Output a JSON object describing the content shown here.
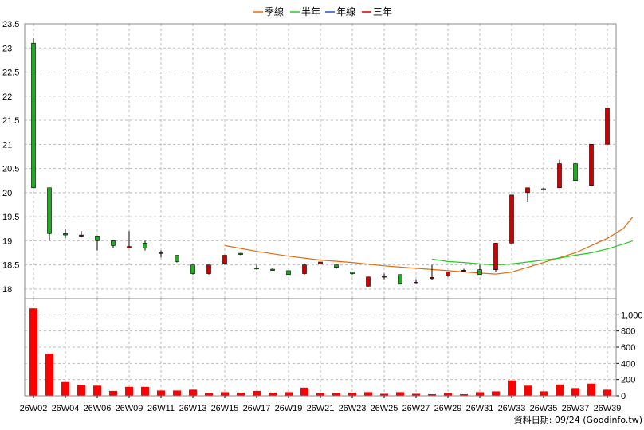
{
  "chart_data": {
    "type": "candlestick",
    "legend": [
      {
        "name": "季線",
        "color": "#e46c0a"
      },
      {
        "name": "半年",
        "color": "#22cc22"
      },
      {
        "name": "年線",
        "color": "#1f4fd8"
      },
      {
        "name": "三年",
        "color": "#cc0000"
      }
    ],
    "source_label": "資料日期: 09/24  (Goodinfo.tw)",
    "price_axis": {
      "min": 17.8,
      "max": 23.5,
      "ticks": [
        18,
        18.5,
        19,
        19.5,
        20,
        20.5,
        21,
        21.5,
        22,
        22.5,
        23,
        23.5
      ]
    },
    "volume_axis": {
      "min": 0,
      "max": 1200,
      "ticks": [
        0,
        200,
        400,
        600,
        800,
        1000
      ],
      "tick_labels": [
        "0",
        "200",
        "400",
        "600",
        "800",
        "1,000"
      ]
    },
    "x_labels": [
      "26W02",
      "26W04",
      "26W06",
      "26W09",
      "26W11",
      "26W13",
      "26W15",
      "26W17",
      "26W19",
      "26W21",
      "26W23",
      "26W25",
      "26W27",
      "26W29",
      "26W31",
      "26W33",
      "26W35",
      "26W37",
      "26W39"
    ],
    "up_color": "#cc0000",
    "down_color": "#22aa22",
    "weeks": [
      {
        "o": 23.1,
        "h": 23.2,
        "l": 20.1,
        "c": 20.1,
        "v": 1080
      },
      {
        "o": 20.1,
        "h": 20.1,
        "l": 19.0,
        "c": 19.15,
        "v": 520
      },
      {
        "o": 19.15,
        "h": 19.25,
        "l": 19.05,
        "c": 19.12,
        "v": 170
      },
      {
        "o": 19.12,
        "h": 19.2,
        "l": 19.08,
        "c": 19.12,
        "v": 135
      },
      {
        "o": 19.1,
        "h": 19.1,
        "l": 18.8,
        "c": 19.0,
        "v": 125
      },
      {
        "o": 19.0,
        "h": 19.0,
        "l": 18.85,
        "c": 18.9,
        "v": 60
      },
      {
        "o": 18.88,
        "h": 19.2,
        "l": 18.85,
        "c": 18.88,
        "v": 110
      },
      {
        "o": 18.95,
        "h": 19.0,
        "l": 18.8,
        "c": 18.85,
        "v": 110
      },
      {
        "o": 18.76,
        "h": 18.8,
        "l": 18.65,
        "c": 18.76,
        "v": 65
      },
      {
        "o": 18.7,
        "h": 18.7,
        "l": 18.55,
        "c": 18.57,
        "v": 65
      },
      {
        "o": 18.5,
        "h": 18.5,
        "l": 18.3,
        "c": 18.32,
        "v": 75
      },
      {
        "o": 18.32,
        "h": 18.5,
        "l": 18.3,
        "c": 18.5,
        "v": 35
      },
      {
        "o": 18.53,
        "h": 18.7,
        "l": 18.5,
        "c": 18.7,
        "v": 45
      },
      {
        "o": 18.74,
        "h": 18.75,
        "l": 18.7,
        "c": 18.72,
        "v": 40
      },
      {
        "o": 18.44,
        "h": 18.5,
        "l": 18.4,
        "c": 18.43,
        "v": 60
      },
      {
        "o": 18.41,
        "h": 18.43,
        "l": 18.38,
        "c": 18.4,
        "v": 40
      },
      {
        "o": 18.38,
        "h": 18.38,
        "l": 18.3,
        "c": 18.3,
        "v": 45
      },
      {
        "o": 18.32,
        "h": 18.52,
        "l": 18.3,
        "c": 18.5,
        "v": 100
      },
      {
        "o": 18.52,
        "h": 18.56,
        "l": 18.51,
        "c": 18.56,
        "v": 35
      },
      {
        "o": 18.5,
        "h": 18.5,
        "l": 18.42,
        "c": 18.45,
        "v": 35
      },
      {
        "o": 18.35,
        "h": 18.35,
        "l": 18.3,
        "c": 18.32,
        "v": 40
      },
      {
        "o": 18.06,
        "h": 18.25,
        "l": 18.05,
        "c": 18.25,
        "v": 45
      },
      {
        "o": 18.27,
        "h": 18.32,
        "l": 18.2,
        "c": 18.27,
        "v": 25
      },
      {
        "o": 18.3,
        "h": 18.3,
        "l": 18.1,
        "c": 18.1,
        "v": 45
      },
      {
        "o": 18.14,
        "h": 18.2,
        "l": 18.1,
        "c": 18.14,
        "v": 25
      },
      {
        "o": 18.22,
        "h": 18.5,
        "l": 18.18,
        "c": 18.24,
        "v": 20
      },
      {
        "o": 18.27,
        "h": 18.35,
        "l": 18.25,
        "c": 18.35,
        "v": 35
      },
      {
        "o": 18.39,
        "h": 18.42,
        "l": 18.36,
        "c": 18.39,
        "v": 20
      },
      {
        "o": 18.4,
        "h": 18.5,
        "l": 18.3,
        "c": 18.3,
        "v": 45
      },
      {
        "o": 18.4,
        "h": 18.95,
        "l": 18.35,
        "c": 18.95,
        "v": 55
      },
      {
        "o": 18.95,
        "h": 19.95,
        "l": 18.95,
        "c": 19.95,
        "v": 190
      },
      {
        "o": 20.0,
        "h": 20.1,
        "l": 19.8,
        "c": 20.1,
        "v": 125
      },
      {
        "o": 20.08,
        "h": 20.1,
        "l": 20.04,
        "c": 20.06,
        "v": 55
      },
      {
        "o": 20.1,
        "h": 20.68,
        "l": 20.1,
        "c": 20.6,
        "v": 140
      },
      {
        "o": 20.6,
        "h": 20.6,
        "l": 20.25,
        "c": 20.25,
        "v": 95
      },
      {
        "o": 20.15,
        "h": 21.0,
        "l": 20.15,
        "c": 21.0,
        "v": 150
      },
      {
        "o": 21.0,
        "h": 21.75,
        "l": 21.0,
        "c": 21.75,
        "v": 75
      }
    ],
    "ma_quarter": [
      [
        12,
        18.9
      ],
      [
        14,
        18.78
      ],
      [
        16,
        18.68
      ],
      [
        18,
        18.6
      ],
      [
        20,
        18.55
      ],
      [
        22,
        18.48
      ],
      [
        24,
        18.43
      ],
      [
        26,
        18.38
      ],
      [
        28,
        18.33
      ],
      [
        29,
        18.31
      ],
      [
        30,
        18.35
      ],
      [
        31,
        18.45
      ],
      [
        32,
        18.55
      ],
      [
        33,
        18.65
      ],
      [
        34,
        18.75
      ],
      [
        35,
        18.9
      ],
      [
        36,
        19.05
      ],
      [
        37,
        19.25
      ],
      [
        37.6,
        19.5
      ]
    ],
    "ma_half": [
      [
        25,
        18.62
      ],
      [
        26,
        18.57
      ],
      [
        27,
        18.55
      ],
      [
        28,
        18.52
      ],
      [
        29,
        18.5
      ],
      [
        30,
        18.52
      ],
      [
        31,
        18.56
      ],
      [
        32,
        18.6
      ],
      [
        33,
        18.64
      ],
      [
        34,
        18.7
      ],
      [
        35,
        18.75
      ],
      [
        36,
        18.83
      ],
      [
        37,
        18.93
      ],
      [
        37.6,
        19.0
      ]
    ]
  }
}
